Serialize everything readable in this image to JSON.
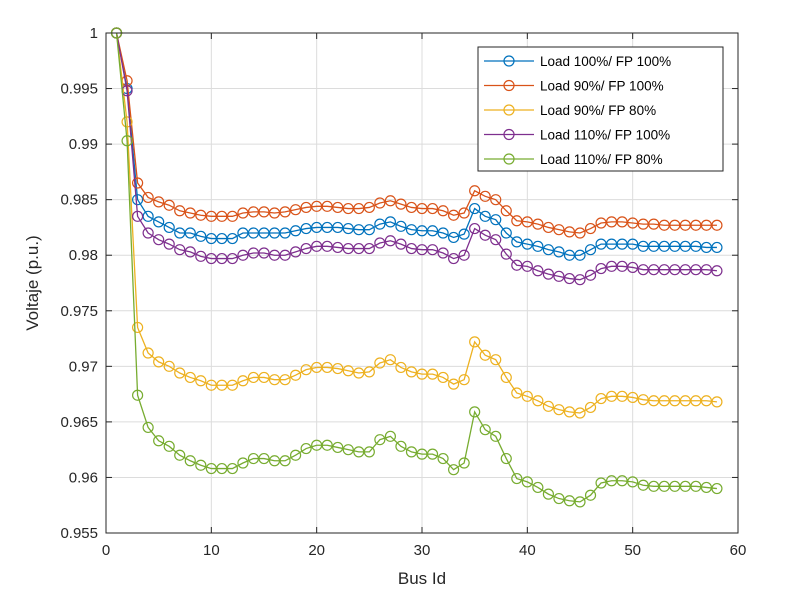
{
  "chart_data": {
    "type": "line",
    "title": "",
    "xlabel": "Bus Id",
    "ylabel": "Voltaje (p.u.)",
    "xlim": [
      0,
      60
    ],
    "ylim": [
      0.955,
      1.0
    ],
    "xticks": [
      0,
      10,
      20,
      30,
      40,
      50,
      60
    ],
    "yticks": [
      0.955,
      0.96,
      0.965,
      0.97,
      0.975,
      0.98,
      0.985,
      0.99,
      0.995,
      1
    ],
    "xtick_labels": [
      "0",
      "10",
      "20",
      "30",
      "40",
      "50",
      "60"
    ],
    "ytick_labels": [
      "0.955",
      "0.96",
      "0.965",
      "0.97",
      "0.975",
      "0.98",
      "0.985",
      "0.99",
      "0.995",
      "1"
    ],
    "grid": true,
    "legend_position": "top-right",
    "x": [
      1,
      2,
      3,
      4,
      5,
      6,
      7,
      8,
      9,
      10,
      11,
      12,
      13,
      14,
      15,
      16,
      17,
      18,
      19,
      20,
      21,
      22,
      23,
      24,
      25,
      26,
      27,
      28,
      29,
      30,
      31,
      32,
      33,
      34,
      35,
      36,
      37,
      38,
      39,
      40,
      41,
      42,
      43,
      44,
      45,
      46,
      47,
      48,
      49,
      50,
      51,
      52,
      53,
      54,
      55,
      56,
      57,
      58
    ],
    "series": [
      {
        "name": "Load 100%/ FP 100%",
        "color": "#0072BD",
        "values": [
          1.0,
          0.995,
          0.985,
          0.9835,
          0.983,
          0.9825,
          0.982,
          0.982,
          0.9817,
          0.9815,
          0.9815,
          0.9815,
          0.982,
          0.982,
          0.982,
          0.982,
          0.982,
          0.9822,
          0.9824,
          0.9825,
          0.9825,
          0.9825,
          0.9824,
          0.9823,
          0.9823,
          0.9828,
          0.983,
          0.9826,
          0.9823,
          0.9822,
          0.9822,
          0.982,
          0.9816,
          0.9819,
          0.9842,
          0.9835,
          0.9832,
          0.982,
          0.9812,
          0.981,
          0.9808,
          0.9805,
          0.9803,
          0.98,
          0.98,
          0.9805,
          0.981,
          0.981,
          0.981,
          0.981,
          0.9808,
          0.9808,
          0.9808,
          0.9808,
          0.9808,
          0.9808,
          0.9807,
          0.9807
        ]
      },
      {
        "name": "Load 90%/ FP 100%",
        "color": "#D95319",
        "values": [
          1.0,
          0.9957,
          0.9865,
          0.9852,
          0.9848,
          0.9845,
          0.984,
          0.9838,
          0.9836,
          0.9835,
          0.9835,
          0.9835,
          0.9838,
          0.9839,
          0.9839,
          0.9838,
          0.9839,
          0.9841,
          0.9843,
          0.9844,
          0.9844,
          0.9843,
          0.9842,
          0.9842,
          0.9843,
          0.9847,
          0.9849,
          0.9846,
          0.9843,
          0.9842,
          0.9842,
          0.984,
          0.9836,
          0.9838,
          0.9858,
          0.9853,
          0.985,
          0.984,
          0.9831,
          0.983,
          0.9828,
          0.9825,
          0.9823,
          0.9821,
          0.982,
          0.9824,
          0.9829,
          0.983,
          0.983,
          0.9829,
          0.9828,
          0.9828,
          0.9827,
          0.9827,
          0.9827,
          0.9827,
          0.9827,
          0.9827
        ]
      },
      {
        "name": "Load 90%/ FP 80%",
        "color": "#EDB120",
        "values": [
          1.0,
          0.992,
          0.9735,
          0.9712,
          0.9704,
          0.97,
          0.9694,
          0.969,
          0.9687,
          0.9683,
          0.9683,
          0.9683,
          0.9687,
          0.969,
          0.969,
          0.9688,
          0.9688,
          0.9692,
          0.9697,
          0.9699,
          0.9699,
          0.9698,
          0.9696,
          0.9694,
          0.9695,
          0.9703,
          0.9706,
          0.9699,
          0.9695,
          0.9693,
          0.9693,
          0.969,
          0.9684,
          0.9688,
          0.9722,
          0.971,
          0.9706,
          0.969,
          0.9676,
          0.9673,
          0.9669,
          0.9664,
          0.9661,
          0.9659,
          0.9658,
          0.9663,
          0.9671,
          0.9673,
          0.9673,
          0.9672,
          0.967,
          0.9669,
          0.9669,
          0.9669,
          0.9669,
          0.9669,
          0.9669,
          0.9668
        ]
      },
      {
        "name": "Load 110%/ FP 100%",
        "color": "#7E2F8E",
        "values": [
          1.0,
          0.9948,
          0.9835,
          0.982,
          0.9814,
          0.981,
          0.9805,
          0.9803,
          0.9799,
          0.9797,
          0.9797,
          0.9797,
          0.98,
          0.9802,
          0.9802,
          0.98,
          0.98,
          0.9803,
          0.9806,
          0.9808,
          0.9808,
          0.9807,
          0.9806,
          0.9806,
          0.9806,
          0.9811,
          0.9813,
          0.981,
          0.9806,
          0.9805,
          0.9805,
          0.9802,
          0.9797,
          0.98,
          0.9824,
          0.9818,
          0.9814,
          0.9801,
          0.9791,
          0.979,
          0.9786,
          0.9783,
          0.9781,
          0.9779,
          0.9778,
          0.9782,
          0.9788,
          0.979,
          0.979,
          0.9789,
          0.9787,
          0.9787,
          0.9787,
          0.9787,
          0.9787,
          0.9787,
          0.9787,
          0.9786
        ]
      },
      {
        "name": "Load 110%/ FP 80%",
        "color": "#77AC30",
        "values": [
          1.0,
          0.9903,
          0.9674,
          0.9645,
          0.9633,
          0.9628,
          0.962,
          0.9615,
          0.9611,
          0.9608,
          0.9608,
          0.9608,
          0.9613,
          0.9617,
          0.9617,
          0.9615,
          0.9615,
          0.962,
          0.9626,
          0.9629,
          0.9629,
          0.9627,
          0.9625,
          0.9623,
          0.9623,
          0.9634,
          0.9637,
          0.9628,
          0.9623,
          0.9621,
          0.9621,
          0.9617,
          0.9607,
          0.9613,
          0.9659,
          0.9643,
          0.9637,
          0.9617,
          0.9599,
          0.9596,
          0.9591,
          0.9585,
          0.9581,
          0.9579,
          0.9578,
          0.9584,
          0.9595,
          0.9597,
          0.9597,
          0.9596,
          0.9593,
          0.9592,
          0.9592,
          0.9592,
          0.9592,
          0.9592,
          0.9591,
          0.959
        ]
      }
    ]
  }
}
